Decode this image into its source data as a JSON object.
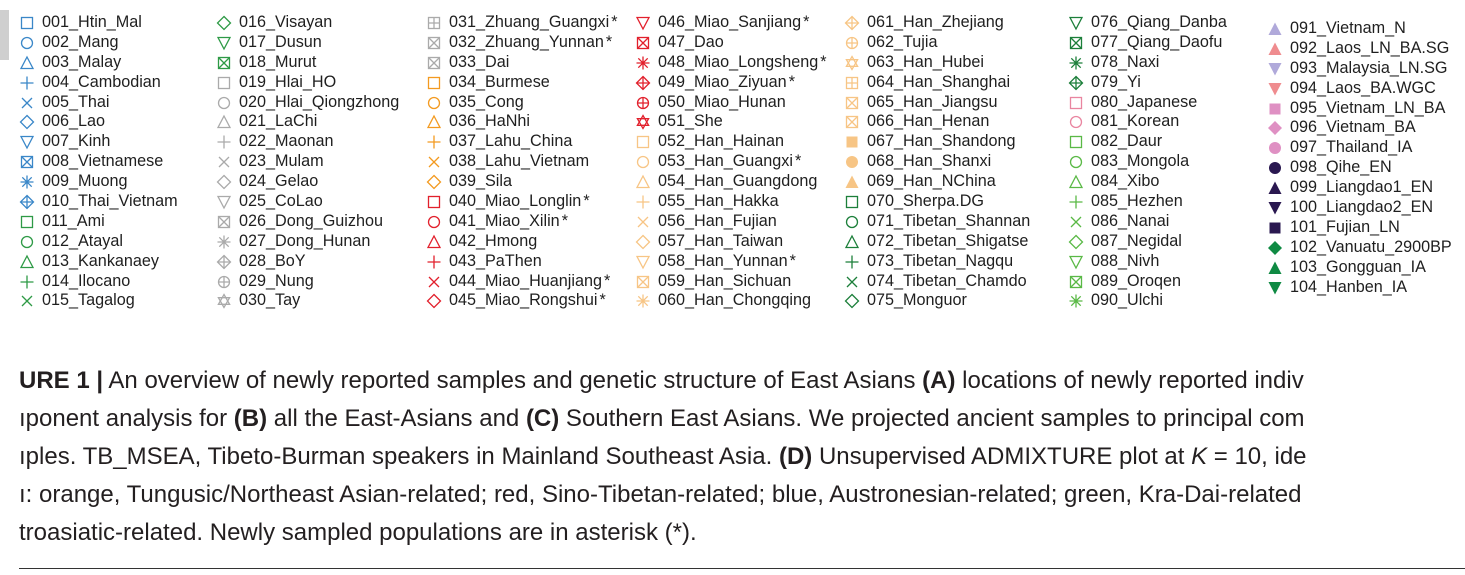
{
  "legend": {
    "columns": [
      [
        {
          "label": "001_Htin_Mal",
          "marker": "square",
          "color": "#3a87c8"
        },
        {
          "label": "002_Mang",
          "marker": "circle",
          "color": "#3a87c8"
        },
        {
          "label": "003_Malay",
          "marker": "triangle-up",
          "color": "#3a87c8"
        },
        {
          "label": "004_Cambodian",
          "marker": "plus",
          "color": "#3a87c8"
        },
        {
          "label": "005_Thai",
          "marker": "cross",
          "color": "#3a87c8"
        },
        {
          "label": "006_Lao",
          "marker": "diamond",
          "color": "#3a87c8"
        },
        {
          "label": "007_Kinh",
          "marker": "triangle-down",
          "color": "#3a87c8"
        },
        {
          "label": "008_Vietnamese",
          "marker": "square-x",
          "color": "#3a87c8"
        },
        {
          "label": "009_Muong",
          "marker": "asterisk",
          "color": "#3a87c8"
        },
        {
          "label": "010_Thai_Vietnam",
          "marker": "diamond-plus",
          "color": "#3a87c8"
        },
        {
          "label": "011_Ami",
          "marker": "square",
          "color": "#2e9a46"
        },
        {
          "label": "012_Atayal",
          "marker": "circle",
          "color": "#2e9a46"
        },
        {
          "label": "013_Kankanaey",
          "marker": "triangle-up",
          "color": "#2e9a46"
        },
        {
          "label": "014_Ilocano",
          "marker": "plus",
          "color": "#2e9a46"
        },
        {
          "label": "015_Tagalog",
          "marker": "cross",
          "color": "#2e9a46"
        }
      ],
      [
        {
          "label": "016_Visayan",
          "marker": "diamond",
          "color": "#2e9a46"
        },
        {
          "label": "017_Dusun",
          "marker": "triangle-down",
          "color": "#2e9a46"
        },
        {
          "label": "018_Murut",
          "marker": "square-x",
          "color": "#2e9a46"
        },
        {
          "label": "019_Hlai_HO",
          "marker": "square",
          "color": "#aaaaaa"
        },
        {
          "label": "020_Hlai_Qiongzhong",
          "marker": "circle",
          "color": "#aaaaaa"
        },
        {
          "label": "021_LaChi",
          "marker": "triangle-up",
          "color": "#aaaaaa"
        },
        {
          "label": "022_Maonan",
          "marker": "plus",
          "color": "#aaaaaa"
        },
        {
          "label": "023_Mulam",
          "marker": "cross",
          "color": "#aaaaaa"
        },
        {
          "label": "024_Gelao",
          "marker": "diamond",
          "color": "#aaaaaa"
        },
        {
          "label": "025_CoLao",
          "marker": "triangle-down",
          "color": "#aaaaaa"
        },
        {
          "label": "026_Dong_Guizhou",
          "marker": "square-x",
          "color": "#aaaaaa"
        },
        {
          "label": "027_Dong_Hunan",
          "marker": "asterisk",
          "color": "#aaaaaa"
        },
        {
          "label": "028_BoY",
          "marker": "diamond-plus",
          "color": "#aaaaaa"
        },
        {
          "label": "029_Nung",
          "marker": "circle-plus",
          "color": "#aaaaaa"
        },
        {
          "label": "030_Tay",
          "marker": "hexagram",
          "color": "#aaaaaa"
        }
      ],
      [
        {
          "label": "031_Zhuang_Guangxi",
          "marker": "square-plus",
          "color": "#aaaaaa",
          "star": "*"
        },
        {
          "label": "032_Zhuang_Yunnan",
          "marker": "square-x",
          "color": "#aaaaaa",
          "star": "*"
        },
        {
          "label": "033_Dai",
          "marker": "square-x",
          "color": "#aaaaaa"
        },
        {
          "label": "034_Burmese",
          "marker": "square",
          "color": "#f39a20"
        },
        {
          "label": "035_Cong",
          "marker": "circle",
          "color": "#f39a20"
        },
        {
          "label": "036_HaNhi",
          "marker": "triangle-up",
          "color": "#f39a20"
        },
        {
          "label": "037_Lahu_China",
          "marker": "plus",
          "color": "#f39a20"
        },
        {
          "label": "038_Lahu_Vietnam",
          "marker": "cross",
          "color": "#f39a20"
        },
        {
          "label": "039_Sila",
          "marker": "diamond",
          "color": "#f39a20"
        },
        {
          "label": "040_Miao_Longlin",
          "marker": "square",
          "color": "#e2202c",
          "star": "*"
        },
        {
          "label": "041_Miao_Xilin",
          "marker": "circle",
          "color": "#e2202c",
          "star": "*"
        },
        {
          "label": "042_Hmong",
          "marker": "triangle-up",
          "color": "#e2202c"
        },
        {
          "label": "043_PaThen",
          "marker": "plus",
          "color": "#e2202c"
        },
        {
          "label": "044_Miao_Huanjiang",
          "marker": "cross",
          "color": "#e2202c",
          "star": "*"
        },
        {
          "label": "045_Miao_Rongshui",
          "marker": "diamond",
          "color": "#e2202c",
          "star": "*"
        }
      ],
      [
        {
          "label": "046_Miao_Sanjiang",
          "marker": "triangle-down",
          "color": "#e2202c",
          "star": "*"
        },
        {
          "label": "047_Dao",
          "marker": "square-x",
          "color": "#e2202c"
        },
        {
          "label": "048_Miao_Longsheng",
          "marker": "asterisk",
          "color": "#e2202c",
          "star": "*"
        },
        {
          "label": "049_Miao_Ziyuan",
          "marker": "diamond-plus",
          "color": "#e2202c",
          "star": "*"
        },
        {
          "label": "050_Miao_Hunan",
          "marker": "circle-plus",
          "color": "#e2202c"
        },
        {
          "label": "051_She",
          "marker": "hexagram",
          "color": "#e2202c"
        },
        {
          "label": "052_Han_Hainan",
          "marker": "square",
          "color": "#f7c585"
        },
        {
          "label": "053_Han_Guangxi",
          "marker": "circle",
          "color": "#f7c585",
          "star": "*"
        },
        {
          "label": "054_Han_Guangdong",
          "marker": "triangle-up",
          "color": "#f7c585"
        },
        {
          "label": "055_Han_Hakka",
          "marker": "plus",
          "color": "#f7c585"
        },
        {
          "label": "056_Han_Fujian",
          "marker": "cross",
          "color": "#f7c585"
        },
        {
          "label": "057_Han_Taiwan",
          "marker": "diamond",
          "color": "#f7c585"
        },
        {
          "label": "058_Han_Yunnan",
          "marker": "triangle-down",
          "color": "#f7c585",
          "star": "*"
        },
        {
          "label": "059_Han_Sichuan",
          "marker": "square-x",
          "color": "#f7c585"
        },
        {
          "label": "060_Han_Chongqing",
          "marker": "asterisk",
          "color": "#f7c585"
        }
      ],
      [
        {
          "label": "061_Han_Zhejiang",
          "marker": "diamond-plus",
          "color": "#f7c585"
        },
        {
          "label": "062_Tujia",
          "marker": "circle-plus",
          "color": "#f7c585"
        },
        {
          "label": "063_Han_Hubei",
          "marker": "hexagram",
          "color": "#f7c585"
        },
        {
          "label": "064_Han_Shanghai",
          "marker": "square-plus",
          "color": "#f7c585"
        },
        {
          "label": "065_Han_Jiangsu",
          "marker": "square-x",
          "color": "#f7c585"
        },
        {
          "label": "066_Han_Henan",
          "marker": "square-x",
          "color": "#f7c585"
        },
        {
          "label": "067_Han_Shandong",
          "marker": "square-filled",
          "color": "#f7c585"
        },
        {
          "label": "068_Han_Shanxi",
          "marker": "circle-filled",
          "color": "#f7c585"
        },
        {
          "label": "069_Han_NChina",
          "marker": "triangle-up-filled",
          "color": "#f7c585"
        },
        {
          "label": "070_Sherpa.DG",
          "marker": "square",
          "color": "#1c7f3a"
        },
        {
          "label": "071_Tibetan_Shannan",
          "marker": "circle",
          "color": "#1c7f3a"
        },
        {
          "label": "072_Tibetan_Shigatse",
          "marker": "triangle-up",
          "color": "#1c7f3a"
        },
        {
          "label": "073_Tibetan_Nagqu",
          "marker": "plus",
          "color": "#1c7f3a"
        },
        {
          "label": "074_Tibetan_Chamdo",
          "marker": "cross",
          "color": "#1c7f3a"
        },
        {
          "label": "075_Monguor",
          "marker": "diamond",
          "color": "#1c7f3a"
        }
      ],
      [
        {
          "label": "076_Qiang_Danba",
          "marker": "triangle-down",
          "color": "#1c7f3a"
        },
        {
          "label": "077_Qiang_Daofu",
          "marker": "square-x",
          "color": "#1c7f3a"
        },
        {
          "label": "078_Naxi",
          "marker": "asterisk",
          "color": "#1c7f3a"
        },
        {
          "label": "079_Yi",
          "marker": "diamond-plus",
          "color": "#1c7f3a"
        },
        {
          "label": "080_Japanese",
          "marker": "square",
          "color": "#e985a0"
        },
        {
          "label": "081_Korean",
          "marker": "circle",
          "color": "#e985a0"
        },
        {
          "label": "082_Daur",
          "marker": "square",
          "color": "#5ab946"
        },
        {
          "label": "083_Mongola",
          "marker": "circle",
          "color": "#5ab946"
        },
        {
          "label": "084_Xibo",
          "marker": "triangle-up",
          "color": "#5ab946"
        },
        {
          "label": "085_Hezhen",
          "marker": "plus",
          "color": "#5ab946"
        },
        {
          "label": "086_Nanai",
          "marker": "cross",
          "color": "#5ab946"
        },
        {
          "label": "087_Negidal",
          "marker": "diamond",
          "color": "#5ab946"
        },
        {
          "label": "088_Nivh",
          "marker": "triangle-down",
          "color": "#5ab946"
        },
        {
          "label": "089_Oroqen",
          "marker": "square-x",
          "color": "#5ab946"
        },
        {
          "label": "090_Ulchi",
          "marker": "asterisk",
          "color": "#5ab946"
        }
      ],
      [
        {
          "label": "091_Vietnam_N",
          "marker": "triangle-up-filled",
          "color": "#b0a9da"
        },
        {
          "label": "092_Laos_LN_BA.SG",
          "marker": "triangle-up-filled",
          "color": "#ef8c8f"
        },
        {
          "label": "093_Malaysia_LN.SG",
          "marker": "triangle-down-filled",
          "color": "#b0a9da"
        },
        {
          "label": "094_Laos_BA.WGC",
          "marker": "triangle-down-filled",
          "color": "#ef8c8f"
        },
        {
          "label": "095_Vietnam_LN_BA",
          "marker": "square-filled",
          "color": "#df90c3"
        },
        {
          "label": "096_Vietnam_BA",
          "marker": "diamond-filled",
          "color": "#df90c3"
        },
        {
          "label": "097_Thailand_IA",
          "marker": "circle-filled",
          "color": "#df90c3"
        },
        {
          "label": "098_Qihe_EN",
          "marker": "circle-filled",
          "color": "#2a1850"
        },
        {
          "label": "099_Liangdao1_EN",
          "marker": "triangle-up-filled",
          "color": "#2a1850"
        },
        {
          "label": "100_Liangdao2_EN",
          "marker": "triangle-down-filled",
          "color": "#2a1850"
        },
        {
          "label": "101_Fujian_LN",
          "marker": "square-filled",
          "color": "#2a1850"
        },
        {
          "label": "102_Vanuatu_2900BP",
          "marker": "diamond-filled",
          "color": "#0f8a43"
        },
        {
          "label": "103_Gongguan_IA",
          "marker": "triangle-up-filled",
          "color": "#0f8a43"
        },
        {
          "label": "104_Hanben_IA",
          "marker": "triangle-down-filled",
          "color": "#0f8a43"
        }
      ]
    ]
  },
  "caption": {
    "lines": [
      [
        {
          "t": "URE 1 |",
          "b": true
        },
        {
          "t": " An overview of newly reported samples and genetic structure of East Asians "
        },
        {
          "t": "(A)",
          "b": true
        },
        {
          "t": " locations of newly reported indiv"
        }
      ],
      [
        {
          "t": "ıponent analysis for "
        },
        {
          "t": "(B)",
          "b": true
        },
        {
          "t": " all the East-Asians and "
        },
        {
          "t": "(C)",
          "b": true
        },
        {
          "t": " Southern East Asians. We projected ancient samples to principal com"
        }
      ],
      [
        {
          "t": "ıples. TB_MSEA, Tibeto-Burman speakers in Mainland Southeast Asia. "
        },
        {
          "t": "(D)",
          "b": true
        },
        {
          "t": " Unsupervised ADMIXTURE plot at "
        },
        {
          "t": "K",
          "i": true
        },
        {
          "t": " = 10, ide"
        }
      ],
      [
        {
          "t": "ı: orange, Tungusic/Northeast Asian-related; red, Sino-Tibetan-related; blue, Austronesian-related; green, Kra-Dai-related"
        }
      ],
      [
        {
          "t": "troasiatic-related. Newly sampled populations are in asterisk (*)."
        }
      ]
    ]
  }
}
